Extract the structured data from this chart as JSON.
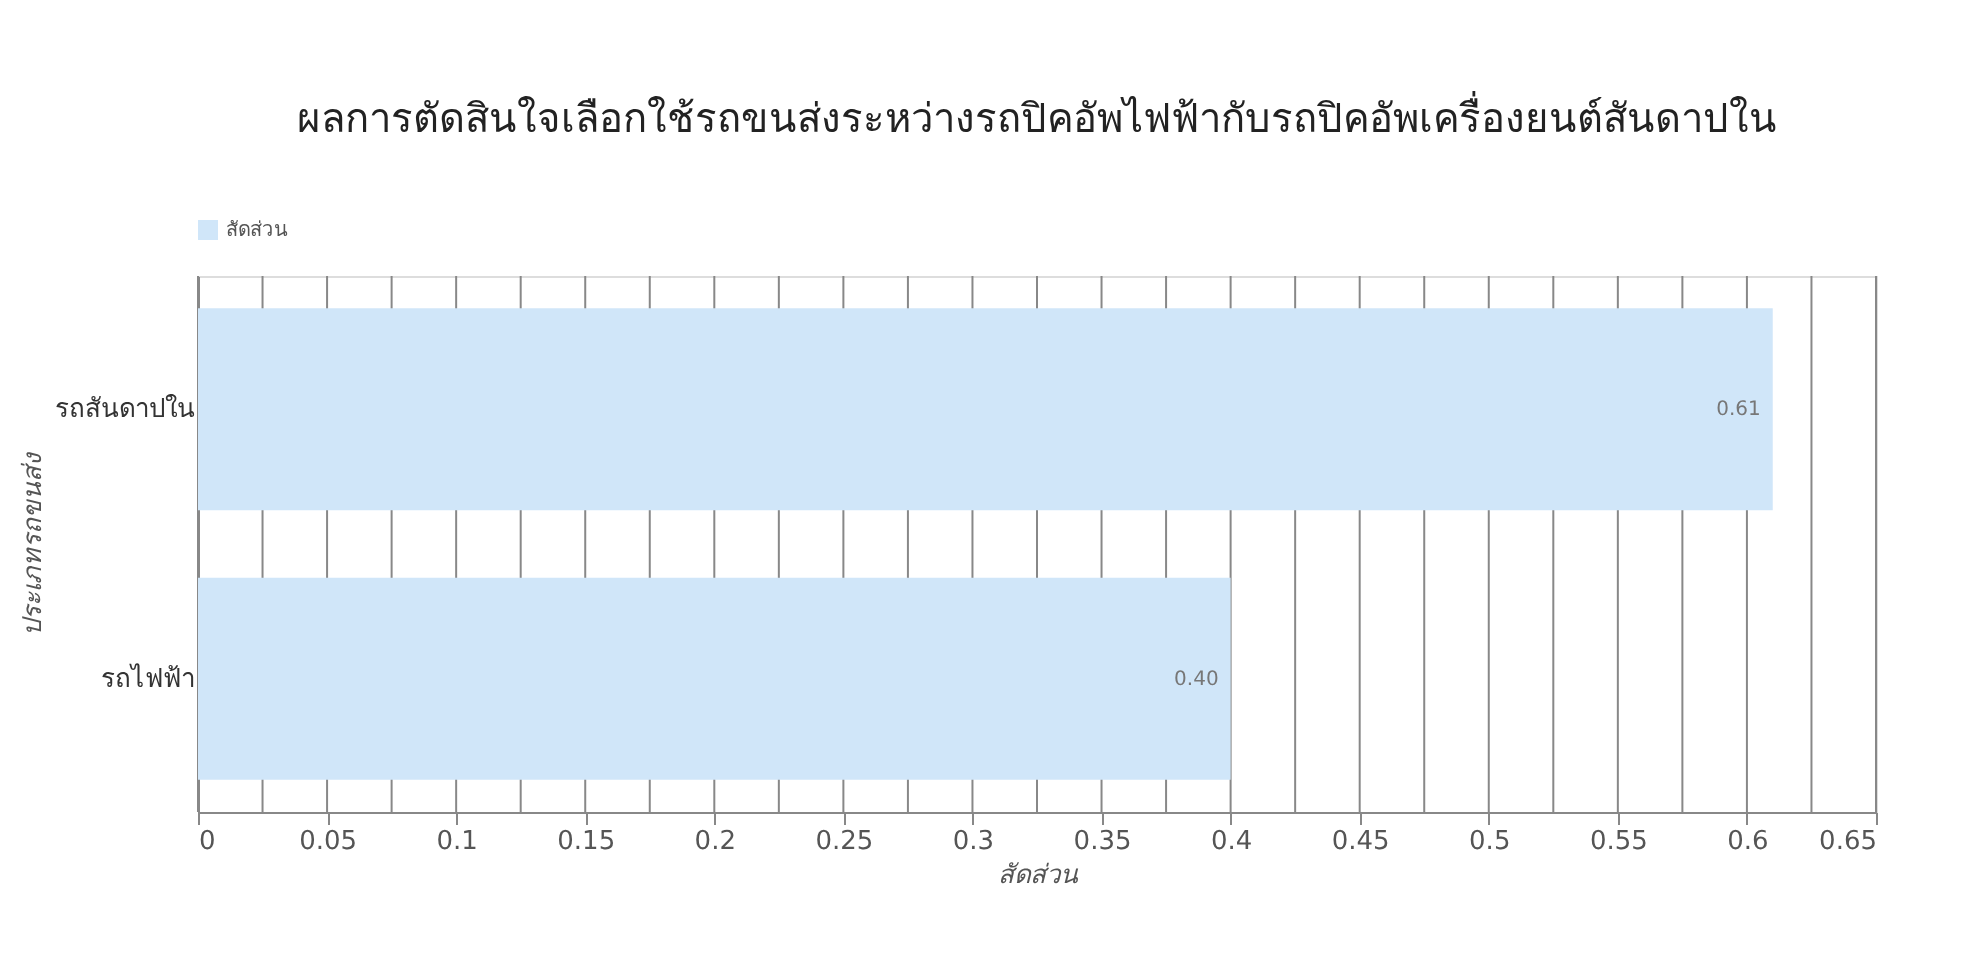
{
  "chart_data": {
    "type": "bar",
    "orientation": "horizontal",
    "title": "ผลการตัดสินใจเลือกใช้รถขนส่งระหว่างรถปิคอัพไฟฟ้ากับรถปิคอัพเครื่องยนต์สันดาปใน",
    "xlabel": "สัดส่วน",
    "ylabel": "ประเภทรถขนส่ง",
    "categories": [
      "รถสันดาปใน",
      "รถไฟฟ้า"
    ],
    "series": [
      {
        "name": "สัดส่วน",
        "color": "#d0e6f9",
        "values": [
          0.61,
          0.4
        ],
        "value_labels": [
          "0.61",
          "0.40"
        ]
      }
    ],
    "legend": "top left",
    "grid": "x",
    "xlim": [
      0,
      0.65
    ],
    "xticks": [
      0,
      {
        "value": 0.025,
        "label": null
      },
      0.05,
      {
        "value": 0.075,
        "label": null
      },
      0.1,
      {
        "value": 0.125,
        "label": null
      },
      0.15,
      {
        "value": 0.175,
        "label": null
      },
      0.2,
      {
        "value": 0.225,
        "label": null
      },
      0.25,
      {
        "value": 0.275,
        "label": null
      },
      0.3,
      {
        "value": 0.325,
        "label": null
      },
      0.35,
      {
        "value": 0.375,
        "label": null
      },
      0.4,
      {
        "value": 0.425,
        "label": null
      },
      0.45,
      {
        "value": 0.475,
        "label": null
      },
      0.5,
      {
        "value": 0.525,
        "label": null
      },
      0.55,
      {
        "value": 0.575,
        "label": null
      },
      0.6,
      {
        "value": 0.625,
        "label": null
      },
      0.65
    ]
  }
}
